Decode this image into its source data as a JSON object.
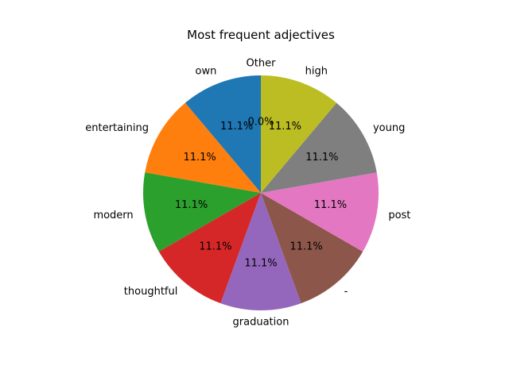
{
  "chart_data": {
    "type": "pie",
    "title": "Most frequent adjectives",
    "start_angle_deg": 90,
    "direction": "counterclockwise",
    "slices": [
      {
        "label": "Other",
        "value": 0,
        "pct_label": "0.0%",
        "color": "#1f77b4"
      },
      {
        "label": "own",
        "value": 1,
        "pct_label": "11.1%",
        "color": "#1f77b4"
      },
      {
        "label": "entertaining",
        "value": 1,
        "pct_label": "11.1%",
        "color": "#ff7f0e"
      },
      {
        "label": "modern",
        "value": 1,
        "pct_label": "11.1%",
        "color": "#2ca02c"
      },
      {
        "label": "thoughtful",
        "value": 1,
        "pct_label": "11.1%",
        "color": "#d62728"
      },
      {
        "label": "graduation",
        "value": 1,
        "pct_label": "11.1%",
        "color": "#9467bd"
      },
      {
        "label": "-",
        "value": 1,
        "pct_label": "11.1%",
        "color": "#8c564b"
      },
      {
        "label": "post",
        "value": 1,
        "pct_label": "11.1%",
        "color": "#e377c2"
      },
      {
        "label": "young",
        "value": 1,
        "pct_label": "11.1%",
        "color": "#7f7f7f"
      },
      {
        "label": "high",
        "value": 1,
        "pct_label": "11.1%",
        "color": "#bcbd22"
      }
    ]
  }
}
